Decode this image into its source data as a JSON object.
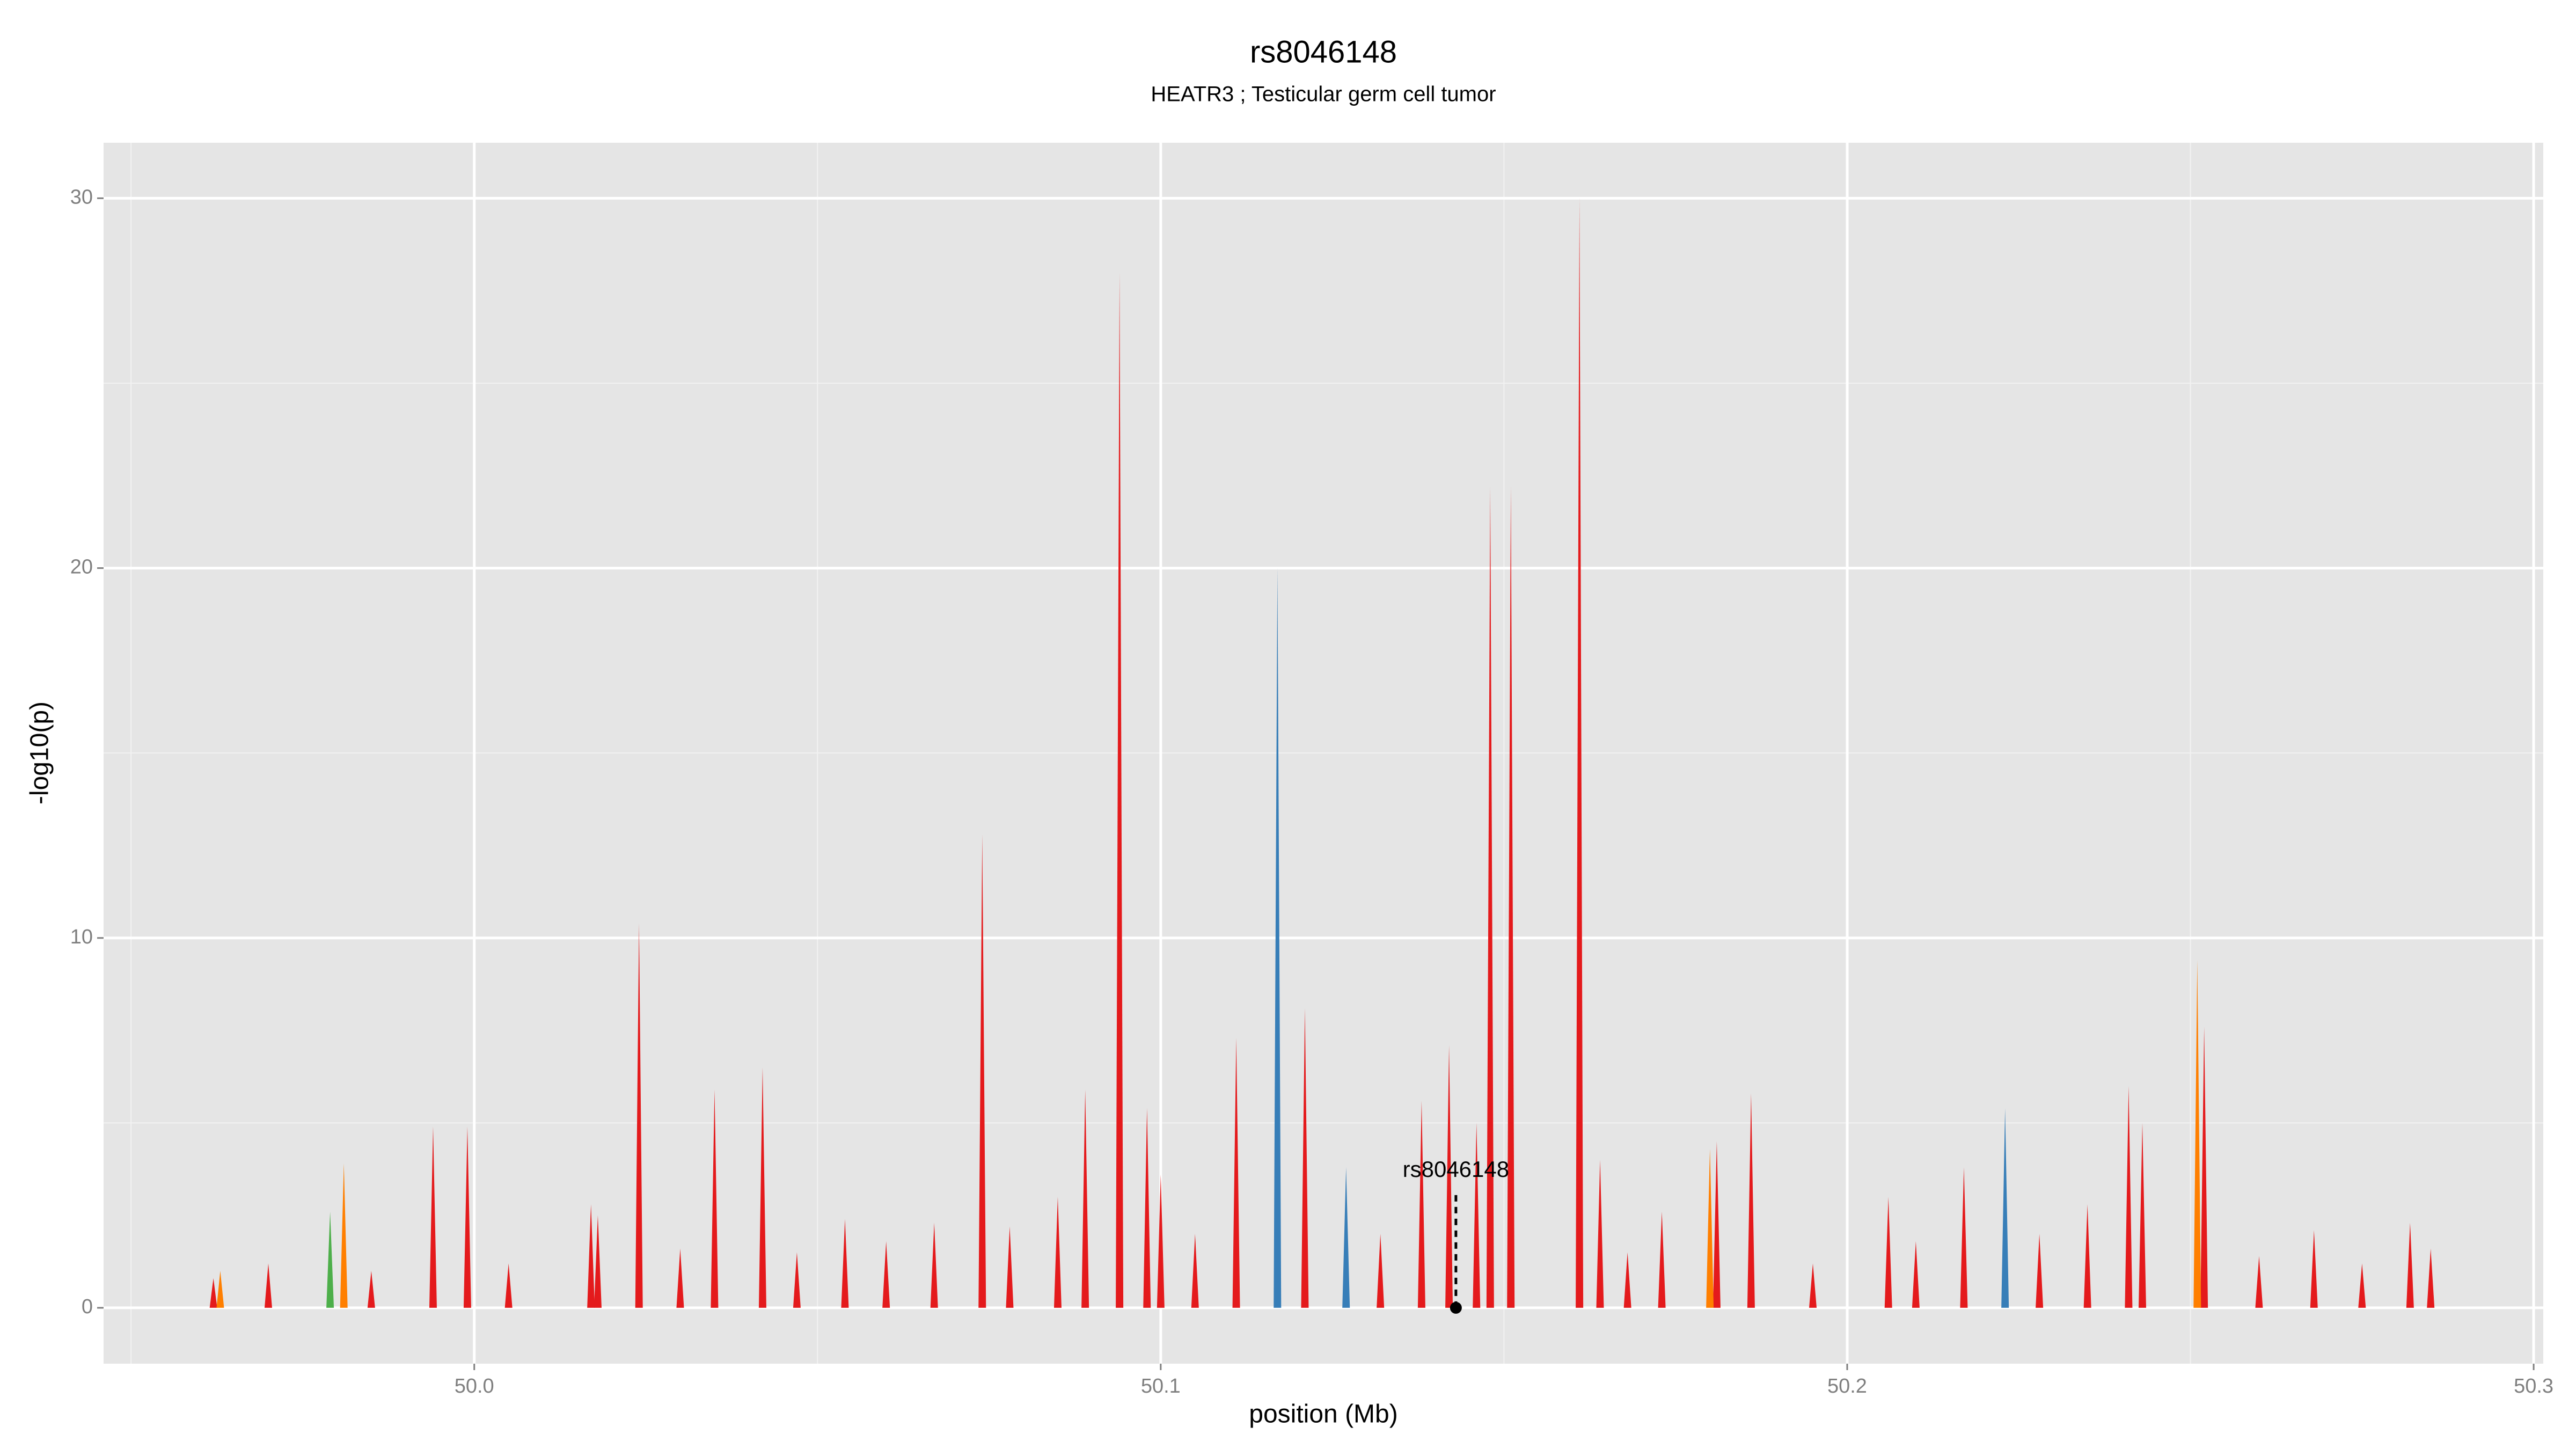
{
  "chart_data": {
    "type": "area",
    "title": "rs8046148",
    "subtitle": "HEATR3 ; Testicular germ cell tumor",
    "x_label": "position (Mb)",
    "y_label": "-log10(p)",
    "xlim": [
      49.946,
      50.3014
    ],
    "ylim": [
      -1.51,
      31.5
    ],
    "xticks": [
      {
        "value": 50.0,
        "label": "50.0"
      },
      {
        "value": 50.1,
        "label": "50.1"
      },
      {
        "value": 50.2,
        "label": "50.2"
      },
      {
        "value": 50.3,
        "label": "50.3"
      }
    ],
    "yticks": [
      0,
      10,
      20,
      30
    ],
    "grid": true,
    "series": [
      {
        "name": "red",
        "color": "#e41a1c",
        "x": [
          49.962,
          49.97,
          49.985,
          49.994,
          49.999,
          50.005,
          50.017,
          50.018,
          50.024,
          50.03,
          50.035,
          50.042,
          50.047,
          50.054,
          50.06,
          50.067,
          50.074,
          50.078,
          50.085,
          50.089,
          50.094,
          50.098,
          50.1,
          50.105,
          50.111,
          50.121,
          50.132,
          50.138,
          50.142,
          50.146,
          50.148,
          50.151,
          50.161,
          50.164,
          50.168,
          50.173,
          50.181,
          50.186,
          50.195,
          50.206,
          50.21,
          50.217,
          50.228,
          50.235,
          50.241,
          50.243,
          50.252,
          50.26,
          50.268,
          50.275,
          50.282,
          50.285
        ],
        "values": [
          0.8,
          1.2,
          1.0,
          4.9,
          4.9,
          1.2,
          2.8,
          2.5,
          10.4,
          1.6,
          5.9,
          6.5,
          1.5,
          2.4,
          1.8,
          2.3,
          12.8,
          2.2,
          3.0,
          5.9,
          28.0,
          5.4,
          3.6,
          2.0,
          7.3,
          8.1,
          2.0,
          5.6,
          7.1,
          5.0,
          22.2,
          22.2,
          30.0,
          4.0,
          1.5,
          2.6,
          4.5,
          5.8,
          1.2,
          3.0,
          1.8,
          3.8,
          2.0,
          2.8,
          6.0,
          5.0,
          7.6,
          1.4,
          2.1,
          1.2,
          2.3,
          1.6
        ]
      },
      {
        "name": "orange",
        "color": "#ff7f00",
        "x": [
          49.963,
          49.981,
          50.18,
          50.251
        ],
        "values": [
          1.0,
          3.9,
          4.3,
          9.4
        ]
      },
      {
        "name": "blue",
        "color": "#377eb8",
        "x": [
          50.117,
          50.127,
          50.223
        ],
        "values": [
          20.0,
          3.8,
          5.4
        ]
      },
      {
        "name": "green",
        "color": "#4daf4a",
        "x": [
          49.979
        ],
        "values": [
          2.6
        ]
      }
    ],
    "annotations": [
      {
        "text": "rs8046148",
        "x": 50.143,
        "y": 0
      }
    ]
  }
}
